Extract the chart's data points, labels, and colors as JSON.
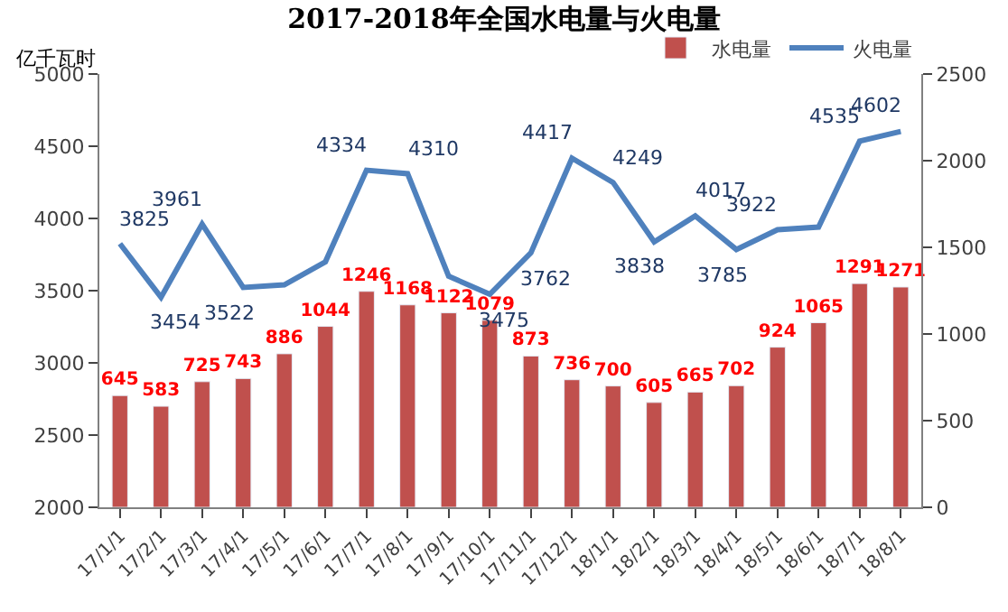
{
  "chart_data": {
    "type": "bar",
    "title": "2017-2018年全国水电量与火电量",
    "ylabel": "亿千瓦时",
    "categories": [
      "17/1/1",
      "17/2/1",
      "17/3/1",
      "17/4/1",
      "17/5/1",
      "17/6/1",
      "17/7/1",
      "17/8/1",
      "17/9/1",
      "17/10/1",
      "17/11/1",
      "17/12/1",
      "18/1/1",
      "18/2/1",
      "18/3/1",
      "18/4/1",
      "18/5/1",
      "18/6/1",
      "18/7/1",
      "18/8/1"
    ],
    "series": [
      {
        "name": "水电量",
        "axis": "y2",
        "color": "#c0504d",
        "values": [
          645,
          583,
          725,
          743,
          886,
          1044,
          1246,
          1168,
          1122,
          1079,
          873,
          736,
          700,
          605,
          665,
          702,
          924,
          1065,
          1291,
          1271
        ],
        "value_labels": [
          "645",
          "583",
          "725",
          "743",
          "886",
          "1044",
          "1246",
          "1168",
          "1122",
          "1079",
          "873",
          "736",
          "700",
          "605",
          "665",
          "702",
          "924",
          "1065",
          "1291",
          "1271"
        ]
      },
      {
        "name": "火电量",
        "type": "line",
        "color": "#4f81bd",
        "values": [
          3825,
          3454,
          3961,
          3522,
          3540,
          3700,
          4334,
          4310,
          3600,
          3475,
          3762,
          4417,
          4249,
          3838,
          4017,
          3785,
          3922,
          3940,
          4535,
          4602
        ],
        "value_labels": [
          "3825",
          "3454",
          "3961",
          "3522",
          null,
          null,
          "4334",
          "4310",
          null,
          "3475",
          "3762",
          "4417",
          "4249",
          "3838",
          "4017",
          "3785",
          "3922",
          null,
          "4535",
          "4602"
        ]
      }
    ],
    "ylim": [
      2000,
      5000
    ],
    "yticks": [
      2000,
      2500,
      3000,
      3500,
      4000,
      4500,
      5000
    ],
    "y2lim": [
      0,
      2500
    ],
    "y2ticks": [
      0,
      500,
      1000,
      1500,
      2000,
      2500
    ],
    "legend": "top right",
    "marker": "none",
    "line_style": "solid"
  }
}
